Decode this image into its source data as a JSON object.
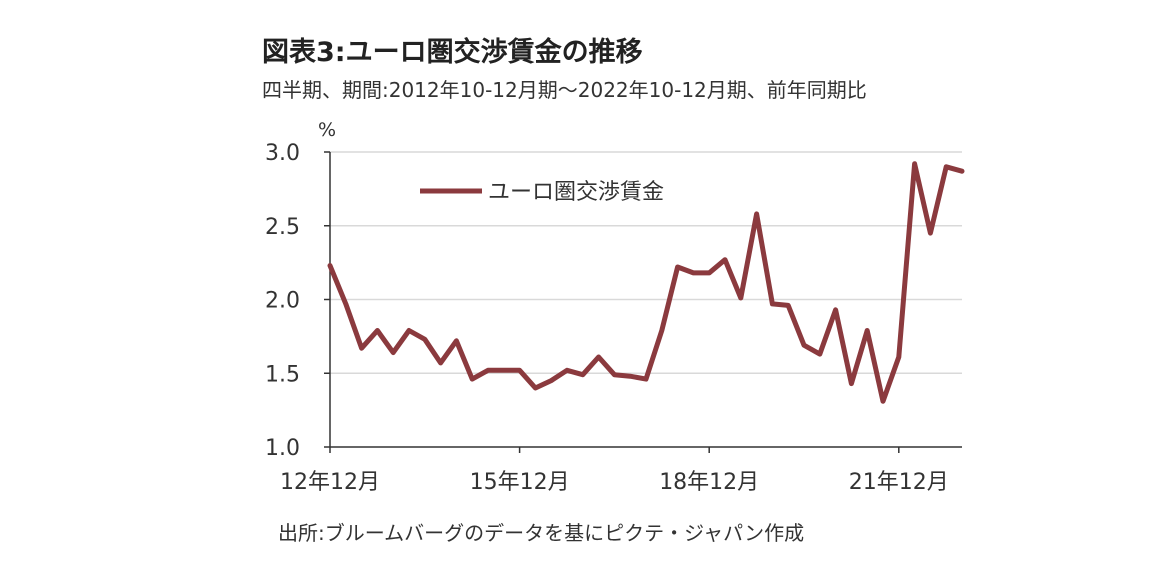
{
  "title": "図表3:ユーロ圏交渉賃金の推移",
  "subtitle": "四半期、期間:2012年10-12月期～2022年10-12月期、前年同期比",
  "source": "出所:ブルームバーグのデータを基にピクテ・ジャパン作成",
  "chart_data": {
    "type": "line",
    "ylabel": "%",
    "ylim": [
      1.0,
      3.0
    ],
    "yticks": [
      "1.0",
      "1.5",
      "2.0",
      "2.5",
      "3.0"
    ],
    "xtick_labels": [
      "12年12月",
      "15年12月",
      "18年12月",
      "21年12月"
    ],
    "grid": true,
    "legend_position": "top-left",
    "series": [
      {
        "name": "ユーロ圏交渉賃金",
        "color": "#8b3a3e",
        "x": [
          "12Q4",
          "13Q1",
          "13Q2",
          "13Q3",
          "13Q4",
          "14Q1",
          "14Q2",
          "14Q3",
          "14Q4",
          "15Q1",
          "15Q2",
          "15Q3",
          "15Q4",
          "16Q1",
          "16Q2",
          "16Q3",
          "16Q4",
          "17Q1",
          "17Q2",
          "17Q3",
          "17Q4",
          "18Q1",
          "18Q2",
          "18Q3",
          "18Q4",
          "19Q1",
          "19Q2",
          "19Q3",
          "19Q4",
          "20Q1",
          "20Q2",
          "20Q3",
          "20Q4",
          "21Q1",
          "21Q2",
          "21Q3",
          "21Q4",
          "22Q1",
          "22Q2",
          "22Q3",
          "22Q4"
        ],
        "values": [
          2.23,
          1.97,
          1.67,
          1.79,
          1.64,
          1.79,
          1.73,
          1.57,
          1.72,
          1.46,
          1.52,
          1.52,
          1.52,
          1.4,
          1.45,
          1.52,
          1.49,
          1.61,
          1.49,
          1.48,
          1.46,
          1.79,
          2.22,
          2.18,
          2.18,
          2.27,
          2.01,
          2.58,
          1.97,
          1.96,
          1.69,
          1.63,
          1.93,
          1.43,
          1.79,
          1.31,
          1.61,
          2.92,
          2.45,
          2.9,
          2.87
        ]
      }
    ]
  }
}
